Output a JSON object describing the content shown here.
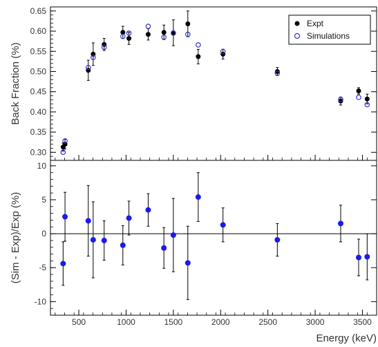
{
  "chart_data": [
    {
      "type": "scatter",
      "ylabel": "Back Fraction (%)",
      "xlim": [
        200,
        3650
      ],
      "ylim": [
        0.28,
        0.66
      ],
      "y_ticks": [
        0.3,
        0.35,
        0.4,
        0.45,
        0.5,
        0.55,
        0.6,
        0.65
      ],
      "y_tick_labels": [
        "0.30",
        "0.35",
        "0.40",
        "0.45",
        "0.50",
        "0.55",
        "0.60",
        "0.65"
      ],
      "legend": {
        "placement": "top-right",
        "entries": [
          "Expt",
          "Simulations"
        ]
      },
      "series": [
        {
          "name": "Expt",
          "color": "#000000",
          "marker": "filled-circle",
          "points": [
            {
              "x": 334,
              "y": 0.313,
              "err": 0.01
            },
            {
              "x": 354,
              "y": 0.32,
              "err": 0.012
            },
            {
              "x": 600,
              "y": 0.503,
              "err": 0.025
            },
            {
              "x": 652,
              "y": 0.543,
              "err": 0.028
            },
            {
              "x": 768,
              "y": 0.567,
              "err": 0.015
            },
            {
              "x": 966,
              "y": 0.597,
              "err": 0.015
            },
            {
              "x": 1030,
              "y": 0.582,
              "err": 0.015
            },
            {
              "x": 1234,
              "y": 0.592,
              "err": 0.014
            },
            {
              "x": 1400,
              "y": 0.597,
              "err": 0.018
            },
            {
              "x": 1500,
              "y": 0.596,
              "err": 0.032
            },
            {
              "x": 1653,
              "y": 0.618,
              "err": 0.032
            },
            {
              "x": 1763,
              "y": 0.537,
              "err": 0.018
            },
            {
              "x": 2025,
              "y": 0.543,
              "err": 0.012
            },
            {
              "x": 2600,
              "y": 0.5,
              "err": 0.01
            },
            {
              "x": 3270,
              "y": 0.427,
              "err": 0.01
            },
            {
              "x": 3460,
              "y": 0.452,
              "err": 0.008
            },
            {
              "x": 3550,
              "y": 0.432,
              "err": 0.012
            }
          ]
        },
        {
          "name": "Simulations",
          "color": "#3333cc",
          "marker": "open-circle",
          "points": [
            {
              "x": 334,
              "y": 0.3
            },
            {
              "x": 354,
              "y": 0.328
            },
            {
              "x": 600,
              "y": 0.51
            },
            {
              "x": 652,
              "y": 0.535
            },
            {
              "x": 768,
              "y": 0.56
            },
            {
              "x": 966,
              "y": 0.587
            },
            {
              "x": 1030,
              "y": 0.595
            },
            {
              "x": 1234,
              "y": 0.612
            },
            {
              "x": 1400,
              "y": 0.585
            },
            {
              "x": 1500,
              "y": 0.595
            },
            {
              "x": 1653,
              "y": 0.592
            },
            {
              "x": 1763,
              "y": 0.566
            },
            {
              "x": 2025,
              "y": 0.55
            },
            {
              "x": 2600,
              "y": 0.496
            },
            {
              "x": 3270,
              "y": 0.431
            },
            {
              "x": 3460,
              "y": 0.436
            },
            {
              "x": 3550,
              "y": 0.418
            }
          ]
        }
      ]
    },
    {
      "type": "scatter",
      "xlabel": "Energy (keV)",
      "ylabel": "(Sim - Exp)/Exp (%)",
      "xlim": [
        200,
        3650
      ],
      "ylim": [
        -12,
        10.8
      ],
      "x_ticks": [
        500,
        1000,
        1500,
        2000,
        2500,
        3000,
        3500
      ],
      "x_tick_labels": [
        "500",
        "1000",
        "1500",
        "2000",
        "2500",
        "3000",
        "3500"
      ],
      "y_ticks": [
        -10,
        -5,
        0,
        5,
        10
      ],
      "y_tick_labels": [
        "-10",
        "-5",
        "0",
        "5",
        "10"
      ],
      "reference_line": 0,
      "series": [
        {
          "color": "#1a1aee",
          "marker": "filled-circle",
          "points": [
            {
              "x": 334,
              "y": -4.4,
              "err": 3.2
            },
            {
              "x": 354,
              "y": 2.5,
              "err": 3.6
            },
            {
              "x": 600,
              "y": 1.9,
              "err": 5.2
            },
            {
              "x": 652,
              "y": -0.9,
              "err": 5.6
            },
            {
              "x": 768,
              "y": -1.0,
              "err": 2.9
            },
            {
              "x": 966,
              "y": -1.7,
              "err": 2.9
            },
            {
              "x": 1030,
              "y": 2.3,
              "err": 2.5
            },
            {
              "x": 1234,
              "y": 3.5,
              "err": 2.4
            },
            {
              "x": 1400,
              "y": -2.1,
              "err": 3.0
            },
            {
              "x": 1500,
              "y": -0.2,
              "err": 5.4
            },
            {
              "x": 1653,
              "y": -4.3,
              "err": 5.4
            },
            {
              "x": 1763,
              "y": 5.4,
              "err": 3.6
            },
            {
              "x": 2025,
              "y": 1.3,
              "err": 2.5
            },
            {
              "x": 2600,
              "y": -0.9,
              "err": 2.4
            },
            {
              "x": 3270,
              "y": 1.5,
              "err": 2.7
            },
            {
              "x": 3460,
              "y": -3.5,
              "err": 2.7
            },
            {
              "x": 3550,
              "y": -3.4,
              "err": 3.4
            }
          ]
        }
      ]
    }
  ]
}
